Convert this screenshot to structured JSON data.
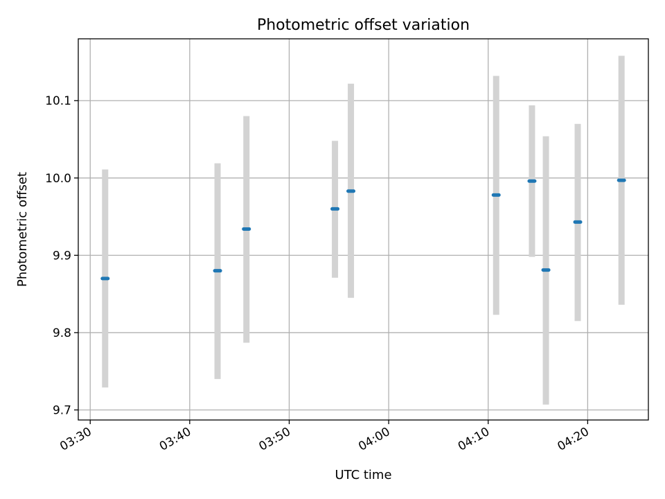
{
  "chart_data": {
    "type": "scatter",
    "title": "Photometric offset variation",
    "xlabel": "UTC time",
    "ylabel": "Photometric offset",
    "x_ticks": [
      "03:30",
      "03:40",
      "03:50",
      "04:00",
      "04:10",
      "04:20"
    ],
    "y_ticks": [
      "9.7",
      "9.8",
      "9.9",
      "10.0",
      "10.1"
    ],
    "xlim": [
      "03:28.8",
      "04:26.1"
    ],
    "ylim": [
      9.687,
      10.18
    ],
    "grid": true,
    "points": [
      {
        "x": "03:31.5",
        "y": 9.87,
        "err_low": 9.729,
        "err_high": 10.011
      },
      {
        "x": "03:42.8",
        "y": 9.88,
        "err_low": 9.74,
        "err_high": 10.019
      },
      {
        "x": "03:45.7",
        "y": 9.934,
        "err_low": 9.787,
        "err_high": 10.08
      },
      {
        "x": "03:54.6",
        "y": 9.96,
        "err_low": 9.871,
        "err_high": 10.048
      },
      {
        "x": "03:56.2",
        "y": 9.983,
        "err_low": 9.845,
        "err_high": 10.122
      },
      {
        "x": "04:10.8",
        "y": 9.978,
        "err_low": 9.823,
        "err_high": 10.132
      },
      {
        "x": "04:14.4",
        "y": 9.996,
        "err_low": 9.898,
        "err_high": 10.094
      },
      {
        "x": "04:15.8",
        "y": 9.881,
        "err_low": 9.707,
        "err_high": 10.054
      },
      {
        "x": "04:19.0",
        "y": 9.943,
        "err_low": 9.815,
        "err_high": 10.07
      },
      {
        "x": "04:23.4",
        "y": 9.997,
        "err_low": 9.836,
        "err_high": 10.158
      }
    ],
    "colors": {
      "marker": "#1f77b4",
      "errorbar": "#d3d3d3",
      "grid": "#b0b0b0"
    }
  }
}
